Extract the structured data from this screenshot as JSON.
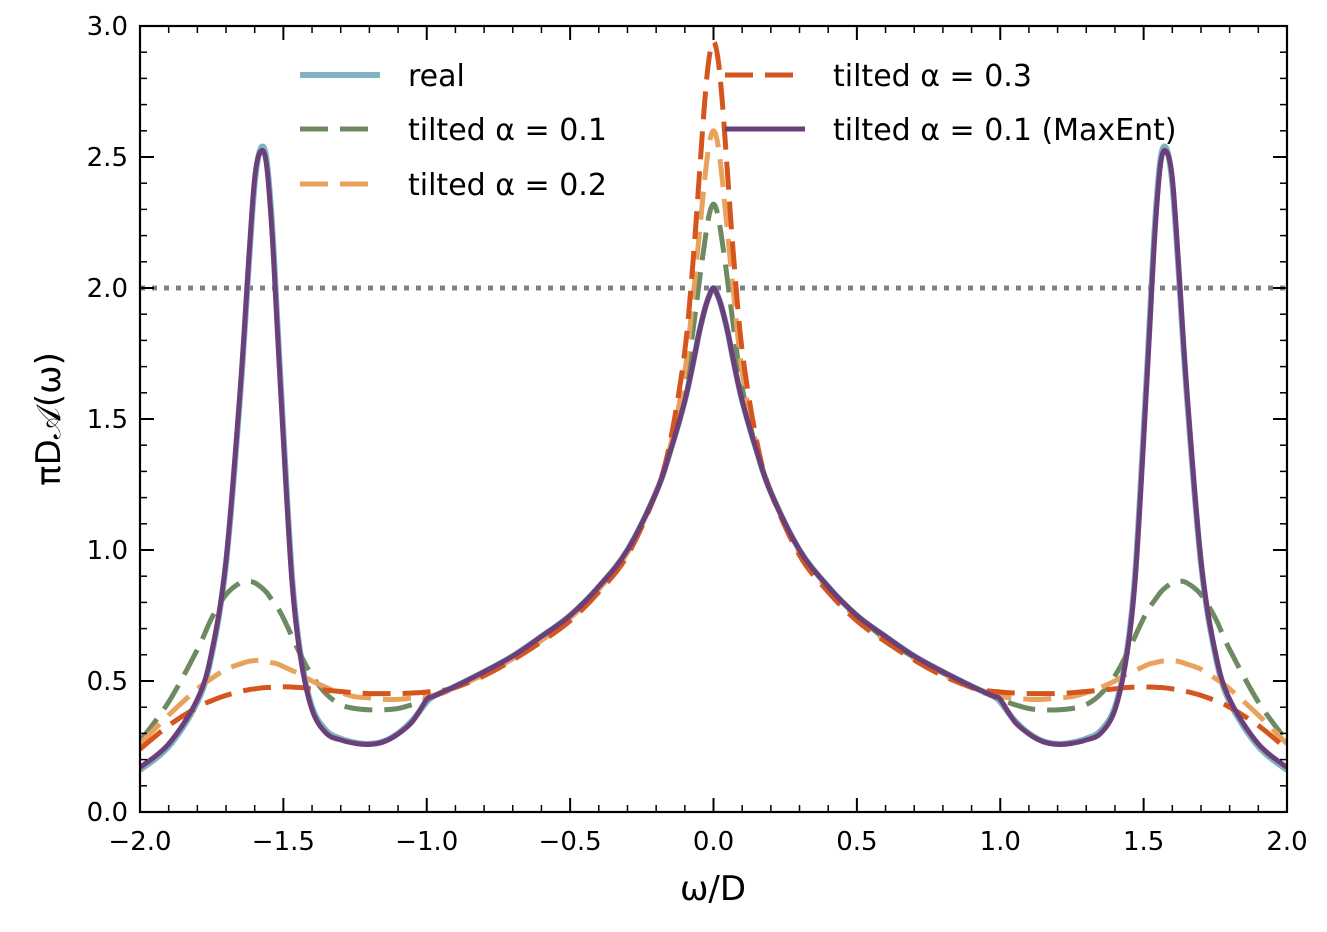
{
  "chart_data": {
    "type": "line",
    "title": "",
    "xlabel": "ω/D",
    "ylabel": "πD𝒜(ω)",
    "xlim": [
      -2.0,
      2.0
    ],
    "ylim": [
      0.0,
      3.0
    ],
    "xticks": [
      "−2.0",
      "−1.5",
      "−1.0",
      "−0.5",
      "0.0",
      "0.5",
      "1.0",
      "1.5",
      "2.0"
    ],
    "xtick_values": [
      -2.0,
      -1.5,
      -1.0,
      -0.5,
      0.0,
      0.5,
      1.0,
      1.5,
      2.0
    ],
    "yticks": [
      "0.0",
      "0.5",
      "1.0",
      "1.5",
      "2.0",
      "2.5",
      "3.0"
    ],
    "ytick_values": [
      0.0,
      0.5,
      1.0,
      1.5,
      2.0,
      2.5,
      3.0
    ],
    "grid": false,
    "reference_line": {
      "y": 2.0,
      "style": "dotted",
      "color": "#808080"
    },
    "legend_placement": "top",
    "x": [
      -2.0,
      -1.9,
      -1.8,
      -1.75,
      -1.7,
      -1.65,
      -1.62,
      -1.6,
      -1.58,
      -1.56,
      -1.54,
      -1.52,
      -1.5,
      -1.47,
      -1.44,
      -1.4,
      -1.35,
      -1.3,
      -1.25,
      -1.2,
      -1.15,
      -1.1,
      -1.05,
      -1.0,
      -0.98,
      -0.96,
      -0.94,
      -0.9,
      -0.8,
      -0.7,
      -0.6,
      -0.5,
      -0.4,
      -0.3,
      -0.2,
      -0.15,
      -0.1,
      -0.07,
      -0.05,
      -0.03,
      -0.015,
      0.0,
      0.015,
      0.03,
      0.05,
      0.07,
      0.1,
      0.15,
      0.2,
      0.3,
      0.4,
      0.5,
      0.6,
      0.7,
      0.8,
      0.9,
      0.94,
      0.96,
      0.98,
      1.0,
      1.05,
      1.1,
      1.15,
      1.2,
      1.25,
      1.3,
      1.35,
      1.4,
      1.44,
      1.47,
      1.5,
      1.52,
      1.54,
      1.56,
      1.58,
      1.6,
      1.62,
      1.65,
      1.7,
      1.75,
      1.8,
      1.9,
      2.0
    ],
    "series": [
      {
        "name": "real",
        "color": "#7fb3c0",
        "dash": "solid",
        "values": [
          0.16,
          0.25,
          0.42,
          0.6,
          0.95,
          1.6,
          2.1,
          2.4,
          2.53,
          2.5,
          2.25,
          1.85,
          1.45,
          0.9,
          0.6,
          0.4,
          0.31,
          0.28,
          0.265,
          0.26,
          0.27,
          0.3,
          0.35,
          0.42,
          0.44,
          0.45,
          0.46,
          0.48,
          0.535,
          0.595,
          0.67,
          0.75,
          0.86,
          1.0,
          1.22,
          1.38,
          1.57,
          1.72,
          1.83,
          1.92,
          1.97,
          2.0,
          1.97,
          1.92,
          1.83,
          1.72,
          1.57,
          1.38,
          1.22,
          1.0,
          0.86,
          0.75,
          0.67,
          0.595,
          0.535,
          0.48,
          0.46,
          0.45,
          0.44,
          0.42,
          0.35,
          0.3,
          0.27,
          0.26,
          0.265,
          0.28,
          0.31,
          0.4,
          0.6,
          0.9,
          1.45,
          1.85,
          2.25,
          2.5,
          2.53,
          2.4,
          2.1,
          1.6,
          0.95,
          0.6,
          0.42,
          0.25,
          0.16
        ]
      },
      {
        "name": "tilted α = 0.1",
        "color": "#6e8a63",
        "dash": "dashed",
        "values": [
          0.27,
          0.42,
          0.62,
          0.74,
          0.83,
          0.875,
          0.88,
          0.875,
          0.86,
          0.84,
          0.81,
          0.78,
          0.74,
          0.67,
          0.6,
          0.52,
          0.45,
          0.41,
          0.395,
          0.39,
          0.39,
          0.395,
          0.41,
          0.43,
          0.44,
          0.45,
          0.46,
          0.48,
          0.53,
          0.59,
          0.66,
          0.75,
          0.86,
          1.0,
          1.22,
          1.38,
          1.62,
          1.85,
          2.02,
          2.18,
          2.28,
          2.32,
          2.28,
          2.18,
          2.02,
          1.85,
          1.62,
          1.38,
          1.22,
          1.0,
          0.86,
          0.75,
          0.66,
          0.59,
          0.53,
          0.48,
          0.46,
          0.45,
          0.44,
          0.43,
          0.41,
          0.395,
          0.39,
          0.39,
          0.395,
          0.41,
          0.45,
          0.52,
          0.6,
          0.67,
          0.74,
          0.78,
          0.81,
          0.84,
          0.86,
          0.875,
          0.88,
          0.875,
          0.83,
          0.74,
          0.62,
          0.42,
          0.27
        ]
      },
      {
        "name": "tilted α = 0.2",
        "color": "#e9a25e",
        "dash": "dashed",
        "values": [
          0.26,
          0.37,
          0.47,
          0.51,
          0.545,
          0.565,
          0.575,
          0.578,
          0.578,
          0.575,
          0.57,
          0.565,
          0.555,
          0.54,
          0.525,
          0.5,
          0.475,
          0.455,
          0.44,
          0.435,
          0.43,
          0.43,
          0.435,
          0.44,
          0.445,
          0.45,
          0.455,
          0.475,
          0.525,
          0.585,
          0.655,
          0.74,
          0.85,
          0.99,
          1.22,
          1.4,
          1.68,
          1.98,
          2.2,
          2.42,
          2.55,
          2.6,
          2.55,
          2.42,
          2.2,
          1.98,
          1.68,
          1.4,
          1.22,
          0.99,
          0.85,
          0.74,
          0.655,
          0.585,
          0.525,
          0.475,
          0.455,
          0.45,
          0.445,
          0.44,
          0.435,
          0.43,
          0.43,
          0.435,
          0.44,
          0.455,
          0.475,
          0.5,
          0.525,
          0.54,
          0.555,
          0.565,
          0.57,
          0.575,
          0.578,
          0.578,
          0.575,
          0.565,
          0.545,
          0.51,
          0.47,
          0.37,
          0.26
        ]
      },
      {
        "name": "tilted α = 0.3",
        "color": "#d4561e",
        "dash": "dashed",
        "values": [
          0.24,
          0.33,
          0.4,
          0.425,
          0.445,
          0.46,
          0.467,
          0.47,
          0.473,
          0.475,
          0.476,
          0.477,
          0.478,
          0.477,
          0.475,
          0.47,
          0.465,
          0.46,
          0.455,
          0.452,
          0.452,
          0.452,
          0.454,
          0.458,
          0.46,
          0.462,
          0.465,
          0.475,
          0.52,
          0.58,
          0.65,
          0.73,
          0.84,
          0.98,
          1.22,
          1.42,
          1.76,
          2.12,
          2.42,
          2.72,
          2.88,
          2.94,
          2.88,
          2.72,
          2.42,
          2.12,
          1.76,
          1.42,
          1.22,
          0.98,
          0.84,
          0.73,
          0.65,
          0.58,
          0.52,
          0.475,
          0.465,
          0.462,
          0.46,
          0.458,
          0.454,
          0.452,
          0.452,
          0.452,
          0.455,
          0.46,
          0.465,
          0.47,
          0.475,
          0.477,
          0.478,
          0.477,
          0.476,
          0.475,
          0.473,
          0.47,
          0.467,
          0.46,
          0.445,
          0.425,
          0.4,
          0.33,
          0.24
        ]
      },
      {
        "name": "tilted α = 0.1 (MaxEnt)",
        "color": "#6b3f7a",
        "dash": "solid",
        "values": [
          0.17,
          0.26,
          0.43,
          0.61,
          0.96,
          1.62,
          2.12,
          2.42,
          2.52,
          2.48,
          2.22,
          1.82,
          1.42,
          0.88,
          0.59,
          0.39,
          0.3,
          0.275,
          0.262,
          0.258,
          0.268,
          0.298,
          0.345,
          0.43,
          0.44,
          0.45,
          0.46,
          0.48,
          0.535,
          0.595,
          0.67,
          0.75,
          0.86,
          1.0,
          1.22,
          1.38,
          1.57,
          1.72,
          1.83,
          1.92,
          1.97,
          2.0,
          1.97,
          1.92,
          1.83,
          1.72,
          1.57,
          1.38,
          1.22,
          1.0,
          0.86,
          0.75,
          0.67,
          0.595,
          0.535,
          0.48,
          0.46,
          0.45,
          0.44,
          0.43,
          0.345,
          0.298,
          0.268,
          0.258,
          0.262,
          0.275,
          0.3,
          0.39,
          0.59,
          0.88,
          1.42,
          1.82,
          2.22,
          2.48,
          2.52,
          2.42,
          2.12,
          1.62,
          0.96,
          0.61,
          0.43,
          0.26,
          0.17
        ]
      }
    ]
  }
}
